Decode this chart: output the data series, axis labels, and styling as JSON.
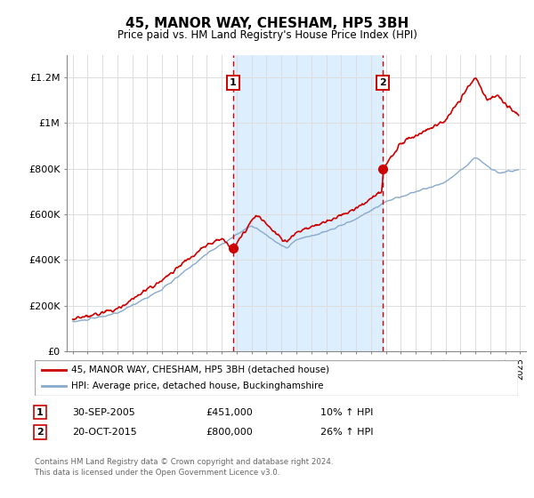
{
  "title": "45, MANOR WAY, CHESHAM, HP5 3BH",
  "subtitle": "Price paid vs. HM Land Registry's House Price Index (HPI)",
  "legend_line1": "45, MANOR WAY, CHESHAM, HP5 3BH (detached house)",
  "legend_line2": "HPI: Average price, detached house, Buckinghamshire",
  "transaction1_date": "30-SEP-2005",
  "transaction1_price": "£451,000",
  "transaction1_hpi": "10% ↑ HPI",
  "transaction2_date": "20-OCT-2015",
  "transaction2_price": "£800,000",
  "transaction2_hpi": "26% ↑ HPI",
  "footer": "Contains HM Land Registry data © Crown copyright and database right 2024.\nThis data is licensed under the Open Government Licence v3.0.",
  "red_color": "#cc0000",
  "blue_color": "#88aacc",
  "vline_color": "#cc0000",
  "shade_color": "#ddeeff",
  "box_color": "#cc0000",
  "ylim": [
    0,
    1300000
  ],
  "yticks": [
    0,
    200000,
    400000,
    600000,
    800000,
    1000000,
    1200000
  ],
  "ytick_labels": [
    "£0",
    "£200K",
    "£400K",
    "£600K",
    "£800K",
    "£1M",
    "£1.2M"
  ],
  "transaction1_x": 2005.75,
  "transaction1_y": 451000,
  "transaction2_x": 2015.8,
  "transaction2_y": 800000,
  "xlim_left": 1994.6,
  "xlim_right": 2025.4
}
